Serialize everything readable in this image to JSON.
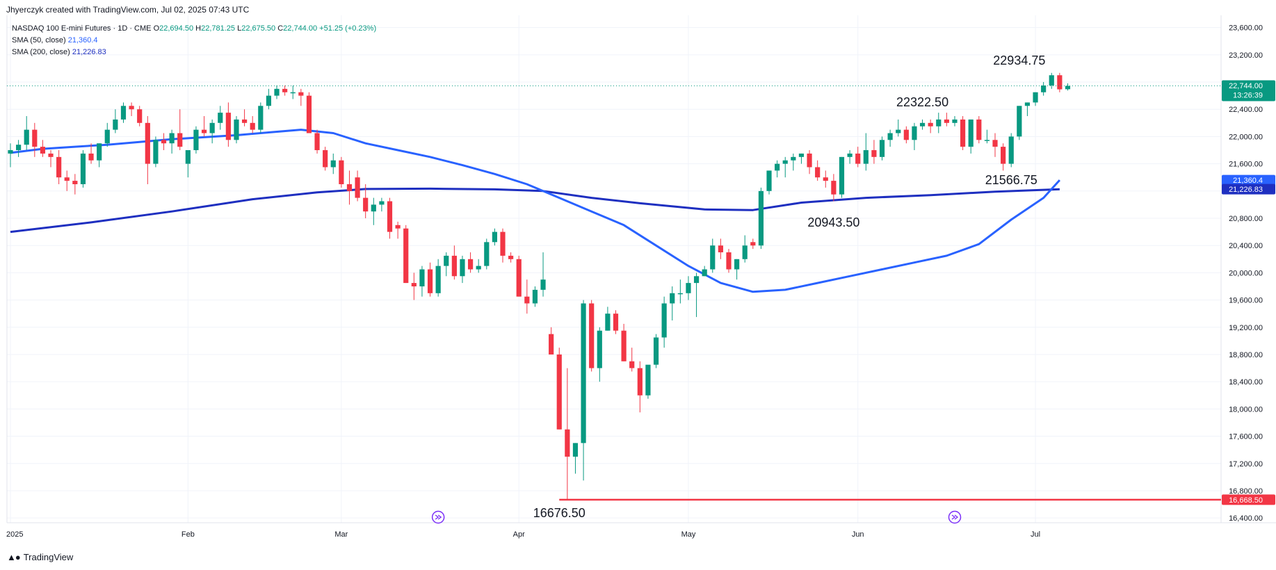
{
  "header": {
    "byline": "Jhyerczyk created with TradingView.com, Jul 02, 2025 07:43 UTC",
    "instrument": "NASDAQ 100 E-mini Futures · 1D · CME",
    "ohlc": {
      "o_label": "O",
      "o": "22,694.50",
      "h_label": "H",
      "h": "22,781.25",
      "l_label": "L",
      "l": "22,675.50",
      "c_label": "C",
      "c": "22,744.00",
      "change": "+51.25 (+0.23%)"
    },
    "sma50_label": "SMA (50, close)",
    "sma50_value": "21,360.4",
    "sma200_label": "SMA (200, close)",
    "sma200_value": "21,226.83"
  },
  "footer": {
    "brand": "TradingView"
  },
  "colors": {
    "up": "#089981",
    "down": "#f23645",
    "sma50": "#2962ff",
    "sma200": "#1e2fc0",
    "support": "#f23645",
    "grid": "#f0f3fa"
  },
  "chart_data": {
    "type": "candlestick",
    "y_axis": {
      "ticks": [
        16400,
        16800,
        17200,
        17600,
        18000,
        18400,
        18800,
        19200,
        19600,
        20000,
        20400,
        20800,
        21200,
        21600,
        22000,
        22400,
        22800,
        23200,
        23600
      ],
      "tick_labels": [
        "16,400.00",
        "16,800.00",
        "17,200.00",
        "17,600.00",
        "18,000.00",
        "18,400.00",
        "18,800.00",
        "19,200.00",
        "19,600.00",
        "20,000.00",
        "20,400.00",
        "20,800.00",
        "",
        "21,600.00",
        "22,000.00",
        "22,400.00",
        "",
        "23,200.00",
        "23,600.00"
      ],
      "range": [
        16330,
        23780
      ]
    },
    "x_axis": {
      "labels": [
        {
          "text": "2025",
          "day": 0
        },
        {
          "text": "Feb",
          "day": 22
        },
        {
          "text": "Mar",
          "day": 41
        },
        {
          "text": "Apr",
          "day": 63
        },
        {
          "text": "May",
          "day": 84
        },
        {
          "text": "Jun",
          "day": 105
        },
        {
          "text": "Jul",
          "day": 127
        }
      ],
      "range": [
        0,
        150
      ]
    },
    "price_labels": [
      {
        "text": "22,744.00",
        "sub": "13:26:39",
        "value": 22744,
        "color": "#089981"
      },
      {
        "text": "21,360.4",
        "value": 21360.4,
        "color": "#2962ff"
      },
      {
        "text": "21,226.83",
        "value": 21226.83,
        "color": "#1e2fc0"
      },
      {
        "text": "16,668.50",
        "value": 16668.5,
        "color": "#f23645"
      }
    ],
    "support_line": {
      "value": 16668.5,
      "from_day": 68,
      "to_day": 150
    },
    "annotations": [
      {
        "text": "22934.75",
        "day": 125,
        "value": 22934.75,
        "pos": "above"
      },
      {
        "text": "22322.50",
        "day": 113,
        "value": 22322.5,
        "pos": "above"
      },
      {
        "text": "21566.75",
        "day": 124,
        "value": 21566.75,
        "pos": "below"
      },
      {
        "text": "20943.50",
        "day": 102,
        "value": 20943.5,
        "pos": "below"
      },
      {
        "text": "16676.50",
        "day": 68,
        "value": 16676.5,
        "pos": "below"
      }
    ],
    "event_markers": [
      {
        "day": 53
      },
      {
        "day": 117
      }
    ],
    "candles": [
      [
        21750,
        21900,
        21550,
        21800
      ],
      [
        21800,
        21950,
        21700,
        21880
      ],
      [
        21880,
        22300,
        21800,
        22100
      ],
      [
        22100,
        22200,
        21700,
        21850
      ],
      [
        21850,
        21950,
        21700,
        21750
      ],
      [
        21750,
        21800,
        21550,
        21700
      ],
      [
        21700,
        21800,
        21300,
        21400
      ],
      [
        21400,
        21500,
        21200,
        21350
      ],
      [
        21350,
        21450,
        21150,
        21300
      ],
      [
        21300,
        21800,
        21250,
        21750
      ],
      [
        21750,
        21900,
        21600,
        21650
      ],
      [
        21650,
        21900,
        21550,
        21900
      ],
      [
        21900,
        22200,
        21850,
        22100
      ],
      [
        22100,
        22400,
        22050,
        22250
      ],
      [
        22250,
        22500,
        22200,
        22450
      ],
      [
        22450,
        22500,
        22300,
        22400
      ],
      [
        22400,
        22450,
        22150,
        22200
      ],
      [
        22200,
        22300,
        21300,
        21600
      ],
      [
        21600,
        22000,
        21550,
        21950
      ],
      [
        21950,
        22050,
        21800,
        21900
      ],
      [
        21900,
        22100,
        21750,
        22050
      ],
      [
        22050,
        22400,
        21800,
        21850
      ],
      [
        21600,
        21800,
        21400,
        21800
      ],
      [
        21800,
        22150,
        21750,
        22100
      ],
      [
        22100,
        22300,
        22000,
        22050
      ],
      [
        22050,
        22250,
        21900,
        22200
      ],
      [
        22200,
        22450,
        22100,
        22350
      ],
      [
        22350,
        22500,
        21850,
        21950
      ],
      [
        21950,
        22300,
        21900,
        22250
      ],
      [
        22250,
        22400,
        22150,
        22200
      ],
      [
        22200,
        22300,
        22050,
        22100
      ],
      [
        22100,
        22500,
        22050,
        22450
      ],
      [
        22450,
        22700,
        22400,
        22600
      ],
      [
        22600,
        22750,
        22550,
        22700
      ],
      [
        22700,
        22750,
        22600,
        22650
      ],
      [
        22650,
        22750,
        22550,
        22650
      ],
      [
        22650,
        22700,
        22450,
        22600
      ],
      [
        22600,
        22650,
        22050,
        22050
      ],
      [
        22050,
        22100,
        21750,
        21800
      ],
      [
        21800,
        21850,
        21500,
        21550
      ],
      [
        21550,
        21750,
        21450,
        21650
      ],
      [
        21650,
        21700,
        21250,
        21300
      ],
      [
        21300,
        21500,
        21000,
        21200
      ],
      [
        21400,
        21500,
        21050,
        21100
      ],
      [
        21100,
        21300,
        20800,
        20900
      ],
      [
        20900,
        21100,
        20700,
        21000
      ],
      [
        21000,
        21100,
        20900,
        21050
      ],
      [
        21050,
        21100,
        20500,
        20600
      ],
      [
        20700,
        20750,
        20500,
        20650
      ],
      [
        20650,
        20700,
        19850,
        19850
      ],
      [
        19850,
        20000,
        19600,
        19800
      ],
      [
        19800,
        20100,
        19650,
        20050
      ],
      [
        20050,
        20150,
        19650,
        19700
      ],
      [
        19700,
        20200,
        19650,
        20100
      ],
      [
        20100,
        20300,
        19950,
        20250
      ],
      [
        20250,
        20400,
        19900,
        19950
      ],
      [
        19950,
        20250,
        19850,
        20200
      ],
      [
        20200,
        20300,
        20000,
        20050
      ],
      [
        20050,
        20200,
        20000,
        20100
      ],
      [
        20100,
        20500,
        20050,
        20450
      ],
      [
        20450,
        20650,
        20400,
        20600
      ],
      [
        20600,
        20650,
        20150,
        20250
      ],
      [
        20250,
        20300,
        20150,
        20200
      ],
      [
        20200,
        20250,
        19650,
        19650
      ],
      [
        19650,
        19900,
        19400,
        19550
      ],
      [
        19550,
        19800,
        19500,
        19750
      ],
      [
        19750,
        20300,
        19650,
        19900
      ],
      [
        19100,
        19200,
        18800,
        18800
      ],
      [
        18800,
        18900,
        17700,
        17700
      ],
      [
        17700,
        18600,
        16676.5,
        17300
      ],
      [
        17300,
        17500,
        17050,
        17500
      ],
      [
        17500,
        19600,
        16950,
        19550
      ],
      [
        19550,
        19600,
        18550,
        18600
      ],
      [
        18600,
        19200,
        18400,
        19150
      ],
      [
        19150,
        19500,
        19150,
        19400
      ],
      [
        19400,
        19450,
        19100,
        19150
      ],
      [
        19150,
        19250,
        18700,
        18700
      ],
      [
        18700,
        18900,
        18550,
        18600
      ],
      [
        18600,
        18700,
        17950,
        18200
      ],
      [
        18200,
        18600,
        18150,
        18650
      ],
      [
        18650,
        19100,
        18600,
        19050
      ],
      [
        19050,
        19650,
        18900,
        19550
      ],
      [
        19550,
        19800,
        19300,
        19700
      ],
      [
        19700,
        19900,
        19550,
        19700
      ],
      [
        19700,
        19950,
        19600,
        19850
      ],
      [
        19850,
        20000,
        19350,
        19950
      ],
      [
        19950,
        20100,
        19950,
        20050
      ],
      [
        20050,
        20500,
        20000,
        20400
      ],
      [
        20400,
        20500,
        20200,
        20300
      ],
      [
        20300,
        20350,
        20000,
        20050
      ],
      [
        20050,
        20200,
        19900,
        20200
      ],
      [
        20200,
        20550,
        20150,
        20400
      ],
      [
        20450,
        20500,
        20350,
        20400
      ],
      [
        20400,
        21250,
        20350,
        21200
      ],
      [
        21200,
        21500,
        21150,
        21500
      ],
      [
        21500,
        21650,
        21400,
        21600
      ],
      [
        21600,
        21700,
        21400,
        21650
      ],
      [
        21650,
        21750,
        21500,
        21700
      ],
      [
        21700,
        21750,
        21600,
        21750
      ],
      [
        21750,
        21800,
        21450,
        21550
      ],
      [
        21550,
        21650,
        21350,
        21400
      ],
      [
        21400,
        21500,
        21250,
        21350
      ],
      [
        21350,
        21450,
        21050,
        21150
      ],
      [
        21150,
        21700,
        21100,
        21700
      ],
      [
        21700,
        21800,
        21600,
        21750
      ],
      [
        21750,
        21850,
        21550,
        21600
      ],
      [
        21600,
        22050,
        21500,
        21800
      ],
      [
        21800,
        21950,
        21600,
        21700
      ],
      [
        21700,
        22000,
        21650,
        21950
      ],
      [
        21950,
        22100,
        21850,
        22050
      ],
      [
        22050,
        22250,
        22000,
        22100
      ],
      [
        22100,
        22150,
        21900,
        21950
      ],
      [
        21950,
        22200,
        21800,
        22150
      ],
      [
        22150,
        22250,
        22100,
        22200
      ],
      [
        22200,
        22250,
        22050,
        22150
      ],
      [
        22150,
        22350,
        22050,
        22250
      ],
      [
        22250,
        22350,
        22150,
        22200
      ],
      [
        22200,
        22300,
        22150,
        22250
      ],
      [
        22250,
        22300,
        21800,
        21850
      ],
      [
        21850,
        22250,
        21750,
        22250
      ],
      [
        22250,
        22300,
        21900,
        21950
      ],
      [
        21950,
        22100,
        21900,
        21950
      ],
      [
        21950,
        22050,
        21700,
        21850
      ],
      [
        21850,
        21900,
        21500,
        21600
      ],
      [
        21600,
        22050,
        21550,
        22000
      ],
      [
        22000,
        22450,
        21950,
        22450
      ],
      [
        22450,
        22500,
        22300,
        22500
      ],
      [
        22500,
        22650,
        22450,
        22650
      ],
      [
        22650,
        22800,
        22600,
        22750
      ],
      [
        22750,
        22934.75,
        22700,
        22900
      ],
      [
        22900,
        22934.75,
        22650,
        22693
      ],
      [
        22694.5,
        22781.25,
        22675.5,
        22744
      ]
    ],
    "sma50": [
      [
        0,
        21760
      ],
      [
        4,
        21820
      ],
      [
        8,
        21850
      ],
      [
        12,
        21880
      ],
      [
        16,
        21920
      ],
      [
        20,
        21960
      ],
      [
        24,
        21990
      ],
      [
        28,
        22020
      ],
      [
        32,
        22060
      ],
      [
        36,
        22100
      ],
      [
        40,
        22050
      ],
      [
        44,
        21900
      ],
      [
        48,
        21800
      ],
      [
        52,
        21700
      ],
      [
        56,
        21580
      ],
      [
        60,
        21450
      ],
      [
        64,
        21300
      ],
      [
        68,
        21100
      ],
      [
        72,
        20900
      ],
      [
        76,
        20700
      ],
      [
        80,
        20400
      ],
      [
        84,
        20100
      ],
      [
        88,
        19850
      ],
      [
        92,
        19720
      ],
      [
        96,
        19750
      ],
      [
        100,
        19850
      ],
      [
        104,
        19950
      ],
      [
        108,
        20050
      ],
      [
        112,
        20150
      ],
      [
        116,
        20250
      ],
      [
        120,
        20420
      ],
      [
        124,
        20780
      ],
      [
        128,
        21100
      ],
      [
        130,
        21360.4
      ]
    ],
    "sma200": [
      [
        0,
        20600
      ],
      [
        10,
        20740
      ],
      [
        20,
        20900
      ],
      [
        30,
        21080
      ],
      [
        38,
        21180
      ],
      [
        44,
        21230
      ],
      [
        52,
        21235
      ],
      [
        60,
        21225
      ],
      [
        66,
        21200
      ],
      [
        72,
        21100
      ],
      [
        78,
        21020
      ],
      [
        86,
        20930
      ],
      [
        92,
        20920
      ],
      [
        98,
        21030
      ],
      [
        106,
        21100
      ],
      [
        114,
        21140
      ],
      [
        122,
        21190
      ],
      [
        130,
        21226.83
      ]
    ]
  }
}
